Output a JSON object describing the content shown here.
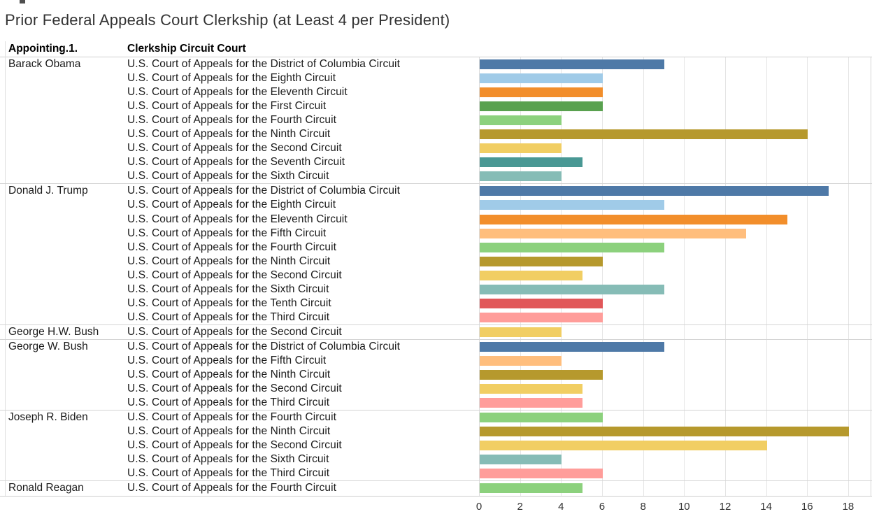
{
  "title": "Prior Federal Appeals Court Clerkship (at Least 4 per President)",
  "columns": {
    "president_header": "Appointing.1.",
    "circuit_header": "Clerkship Circuit Court"
  },
  "axis": {
    "ticks": [
      0,
      2,
      4,
      6,
      8,
      10,
      12,
      14,
      16,
      18
    ],
    "min": 0,
    "max": 18
  },
  "chart_data": {
    "type": "bar",
    "orientation": "horizontal",
    "title": "Prior Federal Appeals Court Clerkship (at Least 4 per President)",
    "xlabel": "",
    "ylabel": "",
    "xlim": [
      0,
      19
    ],
    "x_ticks": [
      0,
      2,
      4,
      6,
      8,
      10,
      12,
      14,
      16,
      18
    ],
    "grid": "vertical",
    "legend": "none",
    "groups": [
      {
        "president": "Barack Obama",
        "rows": [
          {
            "circuit": "U.S. Court of Appeals for the District of Columbia Circuit",
            "value": 9,
            "color": "#4E79A7"
          },
          {
            "circuit": "U.S. Court of Appeals for the Eighth Circuit",
            "value": 6,
            "color": "#A0CBE8"
          },
          {
            "circuit": "U.S. Court of Appeals for the Eleventh Circuit",
            "value": 6,
            "color": "#F28E2B"
          },
          {
            "circuit": "U.S. Court of Appeals for the First Circuit",
            "value": 6,
            "color": "#59A14F"
          },
          {
            "circuit": "U.S. Court of Appeals for the Fourth Circuit",
            "value": 4,
            "color": "#8CD17D"
          },
          {
            "circuit": "U.S. Court of Appeals for the Ninth Circuit",
            "value": 16,
            "color": "#B6992D"
          },
          {
            "circuit": "U.S. Court of Appeals for the Second Circuit",
            "value": 4,
            "color": "#F1CE63"
          },
          {
            "circuit": "U.S. Court of Appeals for the Seventh Circuit",
            "value": 5,
            "color": "#499894"
          },
          {
            "circuit": "U.S. Court of Appeals for the Sixth Circuit",
            "value": 4,
            "color": "#86BCB6"
          }
        ]
      },
      {
        "president": "Donald J. Trump",
        "rows": [
          {
            "circuit": "U.S. Court of Appeals for the District of Columbia Circuit",
            "value": 17,
            "color": "#4E79A7"
          },
          {
            "circuit": "U.S. Court of Appeals for the Eighth Circuit",
            "value": 9,
            "color": "#A0CBE8"
          },
          {
            "circuit": "U.S. Court of Appeals for the Eleventh Circuit",
            "value": 15,
            "color": "#F28E2B"
          },
          {
            "circuit": "U.S. Court of Appeals for the Fifth Circuit",
            "value": 13,
            "color": "#FFBE7D"
          },
          {
            "circuit": "U.S. Court of Appeals for the Fourth Circuit",
            "value": 9,
            "color": "#8CD17D"
          },
          {
            "circuit": "U.S. Court of Appeals for the Ninth Circuit",
            "value": 6,
            "color": "#B6992D"
          },
          {
            "circuit": "U.S. Court of Appeals for the Second Circuit",
            "value": 5,
            "color": "#F1CE63"
          },
          {
            "circuit": "U.S. Court of Appeals for the Sixth Circuit",
            "value": 9,
            "color": "#86BCB6"
          },
          {
            "circuit": "U.S. Court of Appeals for the Tenth Circuit",
            "value": 6,
            "color": "#E15759"
          },
          {
            "circuit": "U.S. Court of Appeals for the Third Circuit",
            "value": 6,
            "color": "#FF9D9A"
          }
        ]
      },
      {
        "president": "George H.W. Bush",
        "rows": [
          {
            "circuit": "U.S. Court of Appeals for the Second Circuit",
            "value": 4,
            "color": "#F1CE63"
          }
        ]
      },
      {
        "president": "George W. Bush",
        "rows": [
          {
            "circuit": "U.S. Court of Appeals for the District of Columbia Circuit",
            "value": 9,
            "color": "#4E79A7"
          },
          {
            "circuit": "U.S. Court of Appeals for the Fifth Circuit",
            "value": 4,
            "color": "#FFBE7D"
          },
          {
            "circuit": "U.S. Court of Appeals for the Ninth Circuit",
            "value": 6,
            "color": "#B6992D"
          },
          {
            "circuit": "U.S. Court of Appeals for the Second Circuit",
            "value": 5,
            "color": "#F1CE63"
          },
          {
            "circuit": "U.S. Court of Appeals for the Third Circuit",
            "value": 5,
            "color": "#FF9D9A"
          }
        ]
      },
      {
        "president": "Joseph R. Biden",
        "rows": [
          {
            "circuit": "U.S. Court of Appeals for the Fourth Circuit",
            "value": 6,
            "color": "#8CD17D"
          },
          {
            "circuit": "U.S. Court of Appeals for the Ninth Circuit",
            "value": 18,
            "color": "#B6992D"
          },
          {
            "circuit": "U.S. Court of Appeals for the Second Circuit",
            "value": 14,
            "color": "#F1CE63"
          },
          {
            "circuit": "U.S. Court of Appeals for the Sixth Circuit",
            "value": 4,
            "color": "#86BCB6"
          },
          {
            "circuit": "U.S. Court of Appeals for the Third Circuit",
            "value": 6,
            "color": "#FF9D9A"
          }
        ]
      },
      {
        "president": "Ronald Reagan",
        "rows": [
          {
            "circuit": "U.S. Court of Appeals for the Fourth Circuit",
            "value": 5,
            "color": "#8CD17D"
          }
        ]
      }
    ]
  }
}
